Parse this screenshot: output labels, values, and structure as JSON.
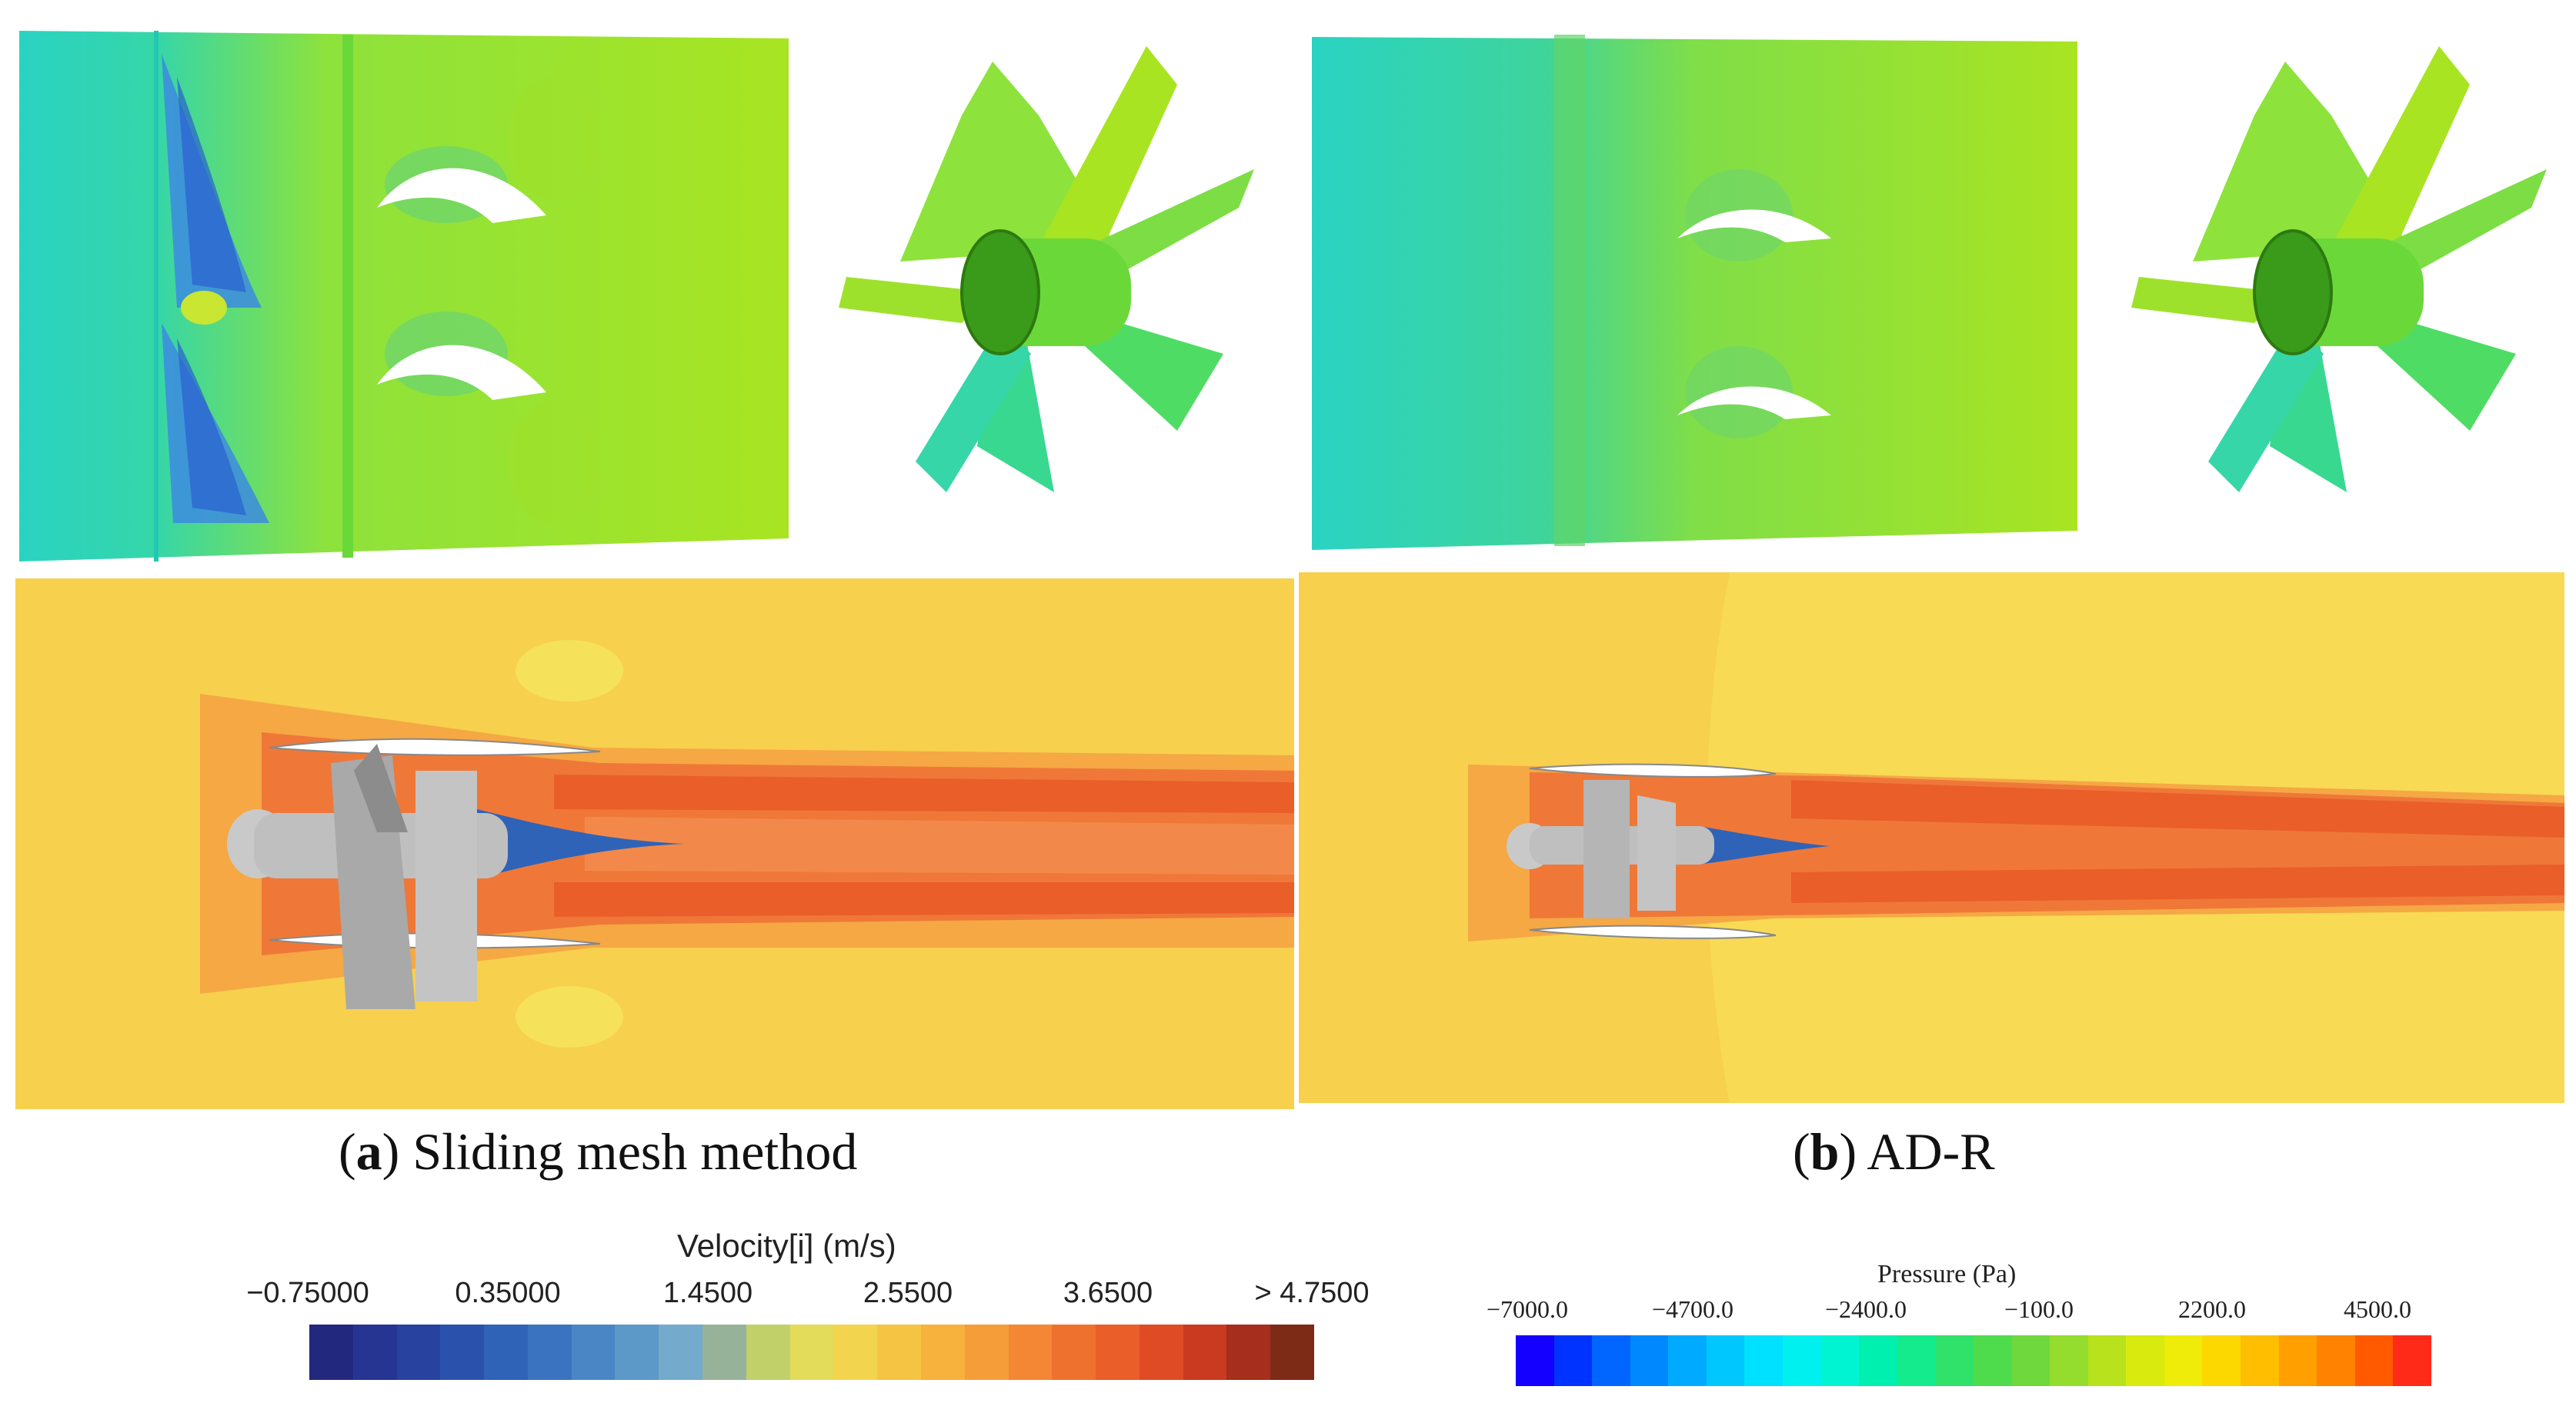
{
  "captions": {
    "a": {
      "letter": "a",
      "text": " Sliding mesh method"
    },
    "b": {
      "letter": "b",
      "text": " AD-R"
    }
  },
  "velocity_legend": {
    "title": "Velocity[i] (m/s)",
    "ticks": [
      "−0.75000",
      "0.35000",
      "1.4500",
      "2.5500",
      "3.6500",
      "> 4.7500"
    ],
    "colors": [
      "#23287f",
      "#263592",
      "#27429f",
      "#2a52ad",
      "#2f63b8",
      "#3a74c0",
      "#4a86c5",
      "#5c98c8",
      "#74aacb",
      "#96b39a",
      "#c2d06a",
      "#e2dc5a",
      "#f3d44e",
      "#f6c443",
      "#f6b23c",
      "#f59d38",
      "#f38733",
      "#ef712e",
      "#e95e29",
      "#df4b25",
      "#c93a20",
      "#a52e1c",
      "#7d2a17"
    ]
  },
  "pressure_legend": {
    "title": "Pressure (Pa)",
    "ticks": [
      "−7000.0",
      "−4700.0",
      "−2400.0",
      "−100.0",
      "2200.0",
      "4500.0"
    ],
    "colors": [
      "#1400ff",
      "#0033ff",
      "#0066ff",
      "#0088ff",
      "#00aaff",
      "#00c8ff",
      "#00e0ff",
      "#00f0f0",
      "#00f4d2",
      "#00f0b0",
      "#14eb8c",
      "#30e26a",
      "#4fdc4c",
      "#6ed83c",
      "#94dc2e",
      "#b8e21c",
      "#d8ea0e",
      "#eeec08",
      "#fcd800",
      "#ffbe00",
      "#ffa000",
      "#ff8200",
      "#ff5a00",
      "#ff2a18"
    ]
  }
}
